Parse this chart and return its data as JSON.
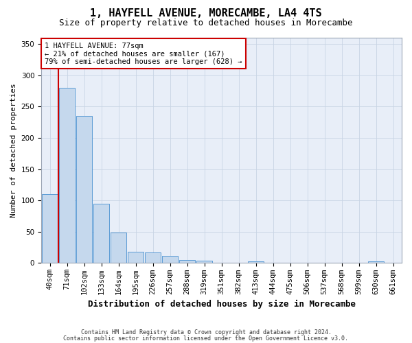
{
  "title": "1, HAYFELL AVENUE, MORECAMBE, LA4 4TS",
  "subtitle": "Size of property relative to detached houses in Morecambe",
  "xlabel": "Distribution of detached houses by size in Morecambe",
  "ylabel": "Number of detached properties",
  "footnote1": "Contains HM Land Registry data © Crown copyright and database right 2024.",
  "footnote2": "Contains public sector information licensed under the Open Government Licence v3.0.",
  "bins": [
    "40sqm",
    "71sqm",
    "102sqm",
    "133sqm",
    "164sqm",
    "195sqm",
    "226sqm",
    "257sqm",
    "288sqm",
    "319sqm",
    "351sqm",
    "382sqm",
    "413sqm",
    "444sqm",
    "475sqm",
    "506sqm",
    "537sqm",
    "568sqm",
    "599sqm",
    "630sqm",
    "661sqm"
  ],
  "values": [
    110,
    280,
    235,
    95,
    49,
    18,
    17,
    11,
    5,
    4,
    0,
    0,
    3,
    0,
    0,
    0,
    0,
    0,
    0,
    3,
    0
  ],
  "bar_color": "#c5d8ed",
  "bar_edge_color": "#5b9bd5",
  "property_line_color": "#cc0000",
  "annotation_text": "1 HAYFELL AVENUE: 77sqm\n← 21% of detached houses are smaller (167)\n79% of semi-detached houses are larger (628) →",
  "annotation_box_color": "#ffffff",
  "annotation_box_edge": "#cc0000",
  "ylim": [
    0,
    360
  ],
  "yticks": [
    0,
    50,
    100,
    150,
    200,
    250,
    300,
    350
  ],
  "plot_bg_color": "#e8eef8",
  "title_fontsize": 11,
  "subtitle_fontsize": 9,
  "ylabel_fontsize": 8,
  "xlabel_fontsize": 9,
  "tick_fontsize": 7.5,
  "annotation_fontsize": 7.5,
  "footnote_fontsize": 6
}
